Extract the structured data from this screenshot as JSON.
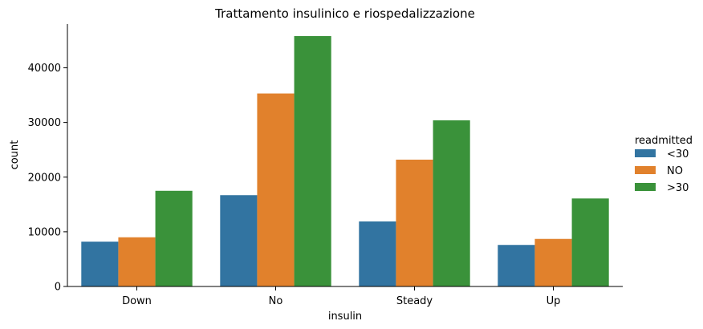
{
  "chart_data": {
    "type": "bar",
    "title": "Trattamento insulinico e riospedalizzazione",
    "xlabel": "insulin",
    "ylabel": "count",
    "categories": [
      "Down",
      "No",
      "Steady",
      "Up"
    ],
    "ylim": [
      0,
      48000
    ],
    "yticks": [
      0,
      10000,
      20000,
      30000,
      40000
    ],
    "grid": false,
    "legend": {
      "title": "readmitted",
      "placement": "right"
    },
    "series": [
      {
        "name": "<30",
        "color": "#3274a1",
        "values": [
          8200,
          16700,
          11900,
          7600
        ]
      },
      {
        "name": "NO",
        "color": "#e1812c",
        "values": [
          9000,
          35300,
          23200,
          8700
        ]
      },
      {
        "name": ">30",
        "color": "#3a923a",
        "values": [
          17500,
          45800,
          30400,
          16100
        ]
      }
    ]
  }
}
